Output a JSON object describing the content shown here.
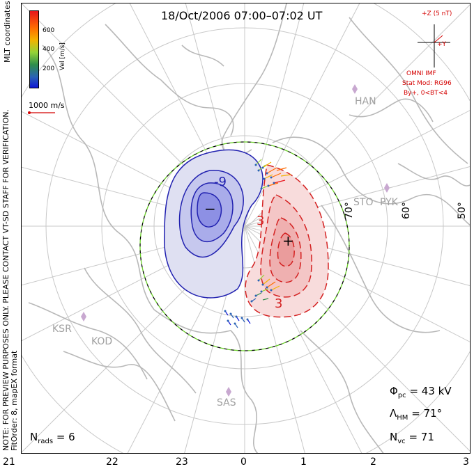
{
  "title": "18/Oct/2006 07:00–07:02 UT",
  "side_notice": "NOTE: FOR PREVIEW PURPOSES ONLY. PLEASE CONTACT VT-SD STAFF FOR VERIFICATION.",
  "side_fit": "FitOrder: 8, mapEX format",
  "coords_label": "MLT coordinates",
  "colorbar": {
    "label": "Vel [m/s]",
    "ticks": [
      "600",
      "400",
      "200"
    ]
  },
  "reference_vector": "1000 m/s",
  "imf": {
    "bz_label": "+Z (5 nT)",
    "by_label": "+Y",
    "source": "OMNI IMF",
    "model": "Stat Mod: RG96",
    "condition": "By+, 0<BT<4"
  },
  "potential_labels": {
    "negative": "-9",
    "positive": "3",
    "positive_lower": "3"
  },
  "extrema": {
    "min": "−",
    "max": "+"
  },
  "latitude_labels": [
    "70°",
    "60°",
    "50°"
  ],
  "stations": [
    "HAN",
    "STO",
    "PYK",
    "KSR",
    "KOD",
    "SAS"
  ],
  "stats": {
    "phi_pc_symbol": "Φ",
    "phi_pc_sub": "pc",
    "phi_pc_value": "= 43 kV",
    "lambda_hm_symbol": "Λ",
    "lambda_hm_sub": "HM",
    "lambda_hm_value": "= 71°",
    "n_vc_symbol": "N",
    "n_vc_sub": "vc",
    "n_vc_value": "= 71",
    "n_rads_symbol": "N",
    "n_rads_sub": "rads",
    "n_rads_value": "= 6"
  },
  "mlt_hours": [
    "21",
    "22",
    "23",
    "0",
    "1",
    "2",
    "3"
  ],
  "colors": {
    "negative_cell": "#2121b0",
    "positive_cell": "#d42121",
    "boundary": "#6bd02a",
    "grid": "#c8c8c8",
    "coast": "#b8b8b8"
  }
}
